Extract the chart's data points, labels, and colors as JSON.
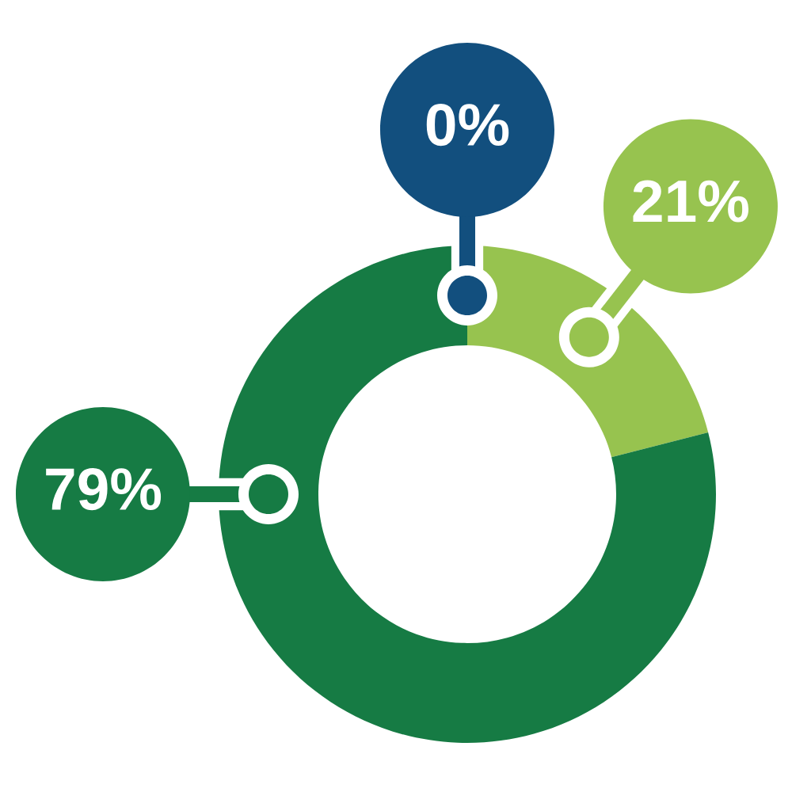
{
  "chart_data": {
    "type": "donut",
    "categories": [
      null,
      null,
      null
    ],
    "values": [
      0,
      21,
      79
    ],
    "colors": [
      "#124f7e",
      "#97c34f",
      "#167b44"
    ],
    "value_labels": [
      "0%",
      "21%",
      "79%"
    ]
  }
}
